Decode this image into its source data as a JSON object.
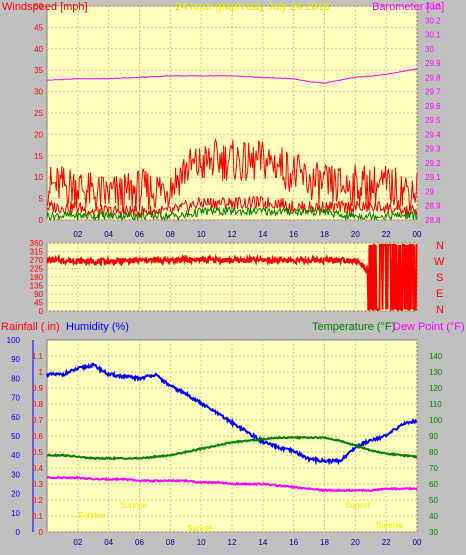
{
  "top_panel": {
    "left_title": "Windspeed [mph]",
    "center_title": "24 hour graph day   July 24 2016",
    "right_title": "Barometer [.in]"
  },
  "mid_panel": {
    "compass_labels": [
      "N",
      "W",
      "S",
      "E",
      "N"
    ]
  },
  "bottom_panel": {
    "rain_title": "Rainfall (.in)",
    "humidity_title": "Humidity (%)",
    "temp_title": "Temperature (°F)",
    "dew_title": "Dew Point (°F)",
    "annotations": [
      "Sunrise",
      "Sunrise",
      "Sunset",
      "Sunset",
      "Sunrise"
    ]
  },
  "colors": {
    "background": "#c0c0c0",
    "plot_bg": "#ffffc0",
    "grid": "#e8c080",
    "wind": "#ff0000",
    "gust": "#ff0000",
    "wind_avg": "#0000ff",
    "wind_low": "#008000",
    "barometer": "#ff00ff",
    "direction": "#ff0000",
    "humidity": "#0000ff",
    "temperature": "#008000",
    "dewpoint": "#ff00ff",
    "rain_axis": "#ff0000"
  },
  "chart_data": [
    {
      "type": "line",
      "name": "wind-barometer",
      "x_ticks": [
        "02",
        "04",
        "06",
        "08",
        "10",
        "12",
        "14",
        "16",
        "18",
        "20",
        "22",
        "00"
      ],
      "y_left": {
        "label": "Windspeed [mph]",
        "range": [
          0,
          50
        ],
        "ticks": [
          0,
          5,
          10,
          15,
          20,
          25,
          30,
          35,
          40,
          45,
          50
        ]
      },
      "y_right": {
        "label": "Barometer [.in]",
        "range": [
          28.8,
          30.3
        ],
        "ticks": [
          "28.8",
          "28.9",
          "29",
          "29.1",
          "29.2",
          "29.3",
          "29.4",
          "29.5",
          "29.6",
          "29.7",
          "29.8",
          "29.9",
          "30",
          "30.1",
          "30.2",
          "30.3"
        ]
      },
      "series": [
        {
          "key": "barometer",
          "x": [
            0,
            2,
            4,
            6,
            8,
            10,
            12,
            14,
            16,
            17,
            18,
            19,
            20,
            22,
            24
          ],
          "values": [
            29.78,
            29.79,
            29.79,
            29.8,
            29.81,
            29.81,
            29.81,
            29.8,
            29.79,
            29.77,
            29.76,
            29.78,
            29.8,
            29.82,
            29.86
          ]
        },
        {
          "key": "gust",
          "x": [
            0,
            1,
            2,
            3,
            4,
            5,
            6,
            7,
            8,
            9,
            10,
            11,
            12,
            13,
            14,
            15,
            16,
            17,
            18,
            19,
            20,
            21,
            22,
            23,
            24
          ],
          "values": [
            8,
            8,
            8,
            6,
            6,
            6,
            7,
            7,
            8,
            12,
            13,
            14,
            14,
            13,
            14,
            13,
            11,
            9,
            8,
            8,
            8,
            8,
            8,
            7,
            7
          ]
        },
        {
          "key": "wind",
          "x": [
            0,
            1,
            2,
            3,
            4,
            5,
            6,
            7,
            8,
            9,
            10,
            11,
            12,
            13,
            14,
            15,
            16,
            17,
            18,
            19,
            20,
            21,
            22,
            23,
            24
          ],
          "values": [
            3,
            3,
            3,
            2,
            2,
            2,
            2,
            2,
            2,
            3,
            4,
            4,
            4,
            4,
            4,
            4,
            3,
            3,
            3,
            3,
            3,
            3,
            3,
            2,
            2
          ]
        },
        {
          "key": "wind_low",
          "x": [
            0,
            1,
            2,
            3,
            4,
            5,
            6,
            7,
            8,
            9,
            10,
            11,
            12,
            13,
            14,
            15,
            16,
            17,
            18,
            19,
            20,
            21,
            22,
            23,
            24
          ],
          "values": [
            1,
            1,
            1,
            1,
            1,
            1,
            1,
            1,
            1,
            1,
            2,
            2,
            2,
            2,
            2,
            2,
            2,
            2,
            2,
            1,
            1,
            1,
            1,
            1,
            1
          ]
        }
      ]
    },
    {
      "type": "line",
      "name": "wind-direction",
      "y_left": {
        "range": [
          0,
          360
        ],
        "ticks": [
          0,
          45,
          90,
          135,
          180,
          225,
          270,
          315,
          360
        ]
      },
      "x": [
        0,
        2,
        4,
        6,
        8,
        10,
        12,
        14,
        16,
        18,
        20,
        21,
        22,
        23,
        24
      ],
      "values": [
        270,
        265,
        262,
        268,
        270,
        272,
        268,
        270,
        268,
        270,
        270,
        200,
        180,
        200,
        180
      ]
    },
    {
      "type": "line",
      "name": "rain-humidity-temperature",
      "x_ticks": [
        "02",
        "04",
        "06",
        "08",
        "10",
        "12",
        "14",
        "16",
        "18",
        "20",
        "22",
        "00"
      ],
      "y_humidity": {
        "range": [
          0,
          100
        ],
        "ticks": [
          0,
          10,
          20,
          30,
          40,
          50,
          60,
          70,
          80,
          90,
          100
        ]
      },
      "y_rain": {
        "range": [
          0,
          1.2
        ],
        "ticks": [
          "0",
          "0.1",
          "0.2",
          "0.3",
          "0.4",
          "0.5",
          "0.6",
          "0.7",
          "0.8",
          "0.9",
          "1",
          "1.1"
        ]
      },
      "y_temp": {
        "range": [
          30,
          150
        ],
        "ticks": [
          30,
          40,
          50,
          60,
          70,
          80,
          90,
          100,
          110,
          120,
          130,
          140
        ]
      },
      "series": [
        {
          "key": "humidity",
          "x": [
            0,
            1,
            2,
            3,
            4,
            5,
            6,
            7,
            8,
            9,
            10,
            11,
            12,
            13,
            14,
            15,
            16,
            17,
            18,
            19,
            20,
            21,
            22,
            23,
            24
          ],
          "values": [
            82,
            82,
            85,
            87,
            82,
            81,
            80,
            82,
            76,
            72,
            67,
            62,
            57,
            52,
            47,
            44,
            42,
            38,
            37,
            37,
            44,
            48,
            50,
            56,
            58
          ]
        },
        {
          "key": "temperature",
          "x": [
            0,
            1,
            2,
            3,
            4,
            5,
            6,
            7,
            8,
            9,
            10,
            11,
            12,
            13,
            14,
            15,
            16,
            17,
            18,
            19,
            20,
            21,
            22,
            23,
            24
          ],
          "values": [
            78,
            78,
            77,
            76,
            76,
            76,
            76,
            77,
            78,
            80,
            82,
            84,
            86,
            87,
            88,
            89,
            89,
            89,
            89,
            87,
            84,
            81,
            79,
            78,
            77
          ]
        },
        {
          "key": "dewpoint",
          "x": [
            0,
            1,
            2,
            3,
            4,
            5,
            6,
            7,
            8,
            9,
            10,
            11,
            12,
            13,
            14,
            15,
            16,
            17,
            18,
            19,
            20,
            21,
            22,
            23,
            24
          ],
          "values": [
            64,
            64,
            64,
            63,
            63,
            63,
            62,
            62,
            62,
            62,
            61,
            61,
            60,
            60,
            60,
            59,
            58,
            57,
            56,
            56,
            56,
            56,
            57,
            57,
            57
          ]
        }
      ]
    }
  ]
}
